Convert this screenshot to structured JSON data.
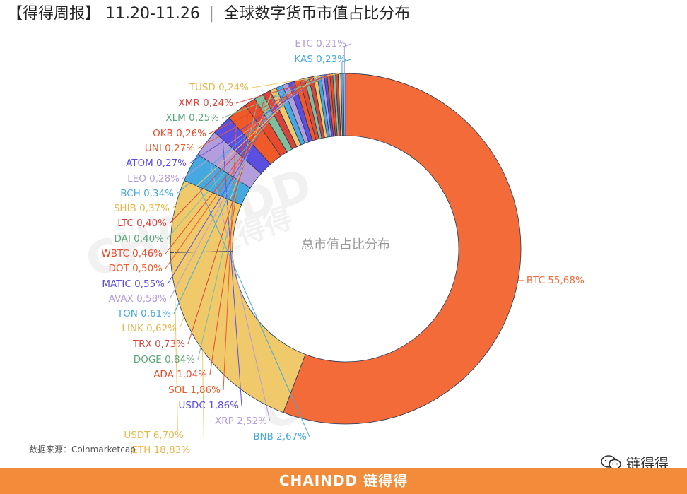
{
  "header": {
    "prefix": "【得得周报】",
    "dates": "11.20-11.26",
    "separator": "|",
    "title": "全球数字货币市值占比分布"
  },
  "source": "数据来源：Coinmarketcap",
  "footer": {
    "brand": "CHAINDD 链得得"
  },
  "wechat": {
    "label": "链得得"
  },
  "watermark": {
    "text1": "CHAINDD",
    "text2": "链得得"
  },
  "chart_data": {
    "type": "pie",
    "variant": "donut",
    "center_label": "总市值占比分布",
    "slices": [
      {
        "name": "BTC",
        "label": "BTC 55,68%",
        "value": 55.68,
        "color": "#f26b38"
      },
      {
        "name": "ETH",
        "label": "ETH 18,83%",
        "value": 18.83,
        "color": "#f0c96a"
      },
      {
        "name": "USDT",
        "label": "USDT 6,70%",
        "value": 6.7,
        "color": "#f0c96a"
      },
      {
        "name": "BNB",
        "label": "BNB 2,67%",
        "value": 2.67,
        "color": "#45a9e0"
      },
      {
        "name": "XRP",
        "label": "XRP 2,52%",
        "value": 2.52,
        "color": "#b39ddb"
      },
      {
        "name": "USDC",
        "label": "USDC 1,86%",
        "value": 1.86,
        "color": "#5b4ee0"
      },
      {
        "name": "SOL",
        "label": "SOL 1,86%",
        "value": 1.86,
        "color": "#f05a28"
      },
      {
        "name": "ADA",
        "label": "ADA 1,04%",
        "value": 1.04,
        "color": "#e8492c"
      },
      {
        "name": "DOGE",
        "label": "DOGE 0,84%",
        "value": 0.84,
        "color": "#7fbf9a"
      },
      {
        "name": "TRX",
        "label": "TRX 0,73%",
        "value": 0.73,
        "color": "#d9423a"
      },
      {
        "name": "LINK",
        "label": "LINK 0,62%",
        "value": 0.62,
        "color": "#f0c96a"
      },
      {
        "name": "TON",
        "label": "TON 0,61%",
        "value": 0.61,
        "color": "#45a9e0"
      },
      {
        "name": "AVAX",
        "label": "AVAX 0,58%",
        "value": 0.58,
        "color": "#b39ddb"
      },
      {
        "name": "MATIC",
        "label": "MATIC 0,55%",
        "value": 0.55,
        "color": "#5b4ee0"
      },
      {
        "name": "DOT",
        "label": "DOT 0,50%",
        "value": 0.5,
        "color": "#f05a28"
      },
      {
        "name": "WBTC",
        "label": "WBTC 0,46%",
        "value": 0.46,
        "color": "#e8492c"
      },
      {
        "name": "DAI",
        "label": "DAI 0,40%",
        "value": 0.4,
        "color": "#7fbf9a"
      },
      {
        "name": "LTC",
        "label": "LTC 0,40%",
        "value": 0.4,
        "color": "#d9423a"
      },
      {
        "name": "SHIB",
        "label": "SHIB 0,37%",
        "value": 0.37,
        "color": "#f0c96a"
      },
      {
        "name": "BCH",
        "label": "BCH 0,34%",
        "value": 0.34,
        "color": "#45a9e0"
      },
      {
        "name": "LEO",
        "label": "LEO 0,28%",
        "value": 0.28,
        "color": "#b39ddb"
      },
      {
        "name": "ATOM",
        "label": "ATOM 0,27%",
        "value": 0.27,
        "color": "#5b4ee0"
      },
      {
        "name": "UNI",
        "label": "UNI 0,27%",
        "value": 0.27,
        "color": "#f05a28"
      },
      {
        "name": "OKB",
        "label": "OKB 0,26%",
        "value": 0.26,
        "color": "#e8492c"
      },
      {
        "name": "XLM",
        "label": "XLM 0,25%",
        "value": 0.25,
        "color": "#7fbf9a"
      },
      {
        "name": "XMR",
        "label": "XMR 0,24%",
        "value": 0.24,
        "color": "#d9423a"
      },
      {
        "name": "TUSD",
        "label": "TUSD 0,24%",
        "value": 0.24,
        "color": "#f0c96a"
      },
      {
        "name": "KAS",
        "label": "KAS 0,23%",
        "value": 0.23,
        "color": "#45a9e0"
      },
      {
        "name": "ETC",
        "label": "ETC 0,21%",
        "value": 0.21,
        "color": "#b39ddb"
      }
    ]
  }
}
